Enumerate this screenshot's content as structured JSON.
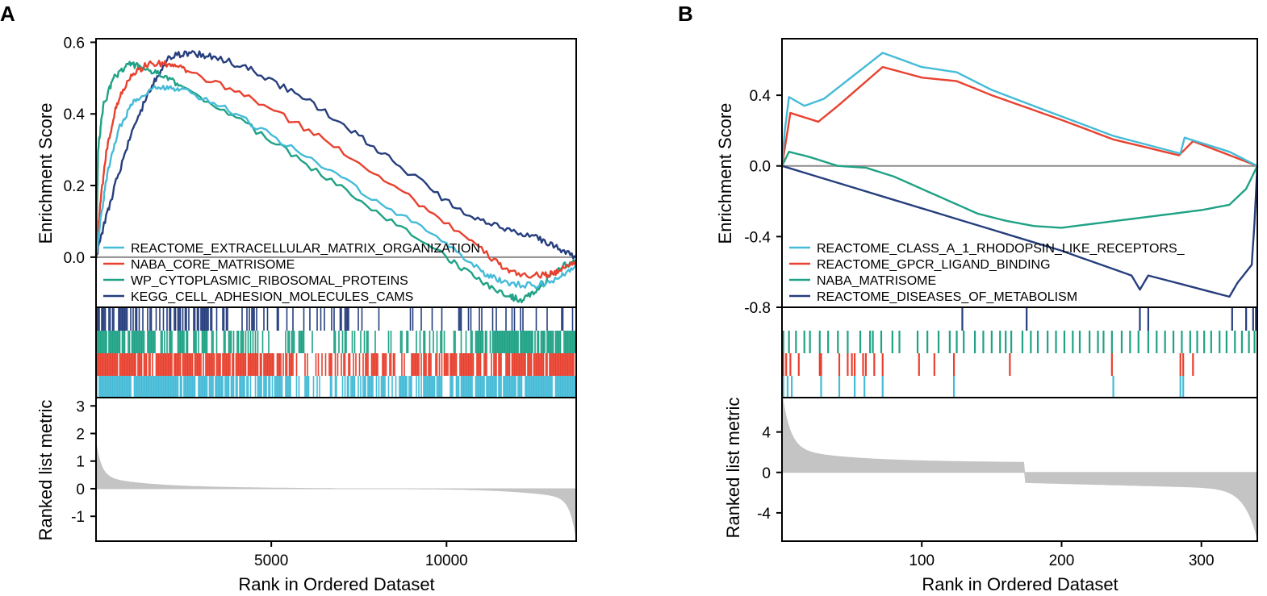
{
  "colors": {
    "light_blue": "#45BBD7",
    "red": "#E8412F",
    "green": "#1FA285",
    "navy": "#263E7D",
    "zero_line": "#8C8C8C",
    "metric_fill": "#C4C4C4",
    "frame": "#000000"
  },
  "chart_data": [
    {
      "panel_label": "A",
      "type": "line",
      "title": "",
      "xlabel": "Rank in Ordered Dataset",
      "ylabel_top": "Enrichment Score",
      "ylabel_bottom": "Ranked list metric",
      "xlim": [
        0,
        13700
      ],
      "xticks": [
        5000,
        10000
      ],
      "es_ylim": [
        -0.14,
        0.61
      ],
      "es_yticks": [
        "0.0",
        "0.2",
        "0.4",
        "0.6"
      ],
      "metric_ylim": [
        -1.9,
        3.3
      ],
      "metric_yticks": [
        "-1",
        "0",
        "1",
        "2",
        "3"
      ],
      "legend_position": "bottom-left",
      "metric_curve": {
        "start": 1.6,
        "knee": 0.4,
        "end": -1.8,
        "break_rank": null
      },
      "series": [
        {
          "name": "REACTOME_EXTRACELLULAR_MATRIX_ORGANIZATION",
          "color_key": "light_blue",
          "es_points": [
            [
              0,
              0.0
            ],
            [
              150,
              0.12
            ],
            [
              350,
              0.25
            ],
            [
              700,
              0.37
            ],
            [
              1100,
              0.44
            ],
            [
              1600,
              0.47
            ],
            [
              2100,
              0.475
            ],
            [
              2500,
              0.47
            ],
            [
              4000,
              0.4
            ],
            [
              6000,
              0.28
            ],
            [
              8000,
              0.16
            ],
            [
              10000,
              0.04
            ],
            [
              11000,
              -0.04
            ],
            [
              11600,
              -0.07
            ],
            [
              12500,
              -0.08
            ],
            [
              13200,
              -0.06
            ],
            [
              13700,
              -0.02
            ]
          ],
          "hits_profile": [
            [
              0,
              0.95
            ],
            [
              4000,
              0.82
            ],
            [
              5800,
              0.5
            ],
            [
              9000,
              0.55
            ],
            [
              11000,
              0.72
            ],
            [
              13700,
              0.95
            ]
          ]
        },
        {
          "name": "NABA_CORE_MATRISOME",
          "color_key": "red",
          "es_points": [
            [
              0,
              0.0
            ],
            [
              120,
              0.15
            ],
            [
              300,
              0.3
            ],
            [
              600,
              0.43
            ],
            [
              1000,
              0.51
            ],
            [
              1500,
              0.54
            ],
            [
              2100,
              0.54
            ],
            [
              2600,
              0.52
            ],
            [
              4500,
              0.44
            ],
            [
              6500,
              0.33
            ],
            [
              8500,
              0.2
            ],
            [
              10500,
              0.06
            ],
            [
              11500,
              -0.02
            ],
            [
              12000,
              -0.05
            ],
            [
              12800,
              -0.05
            ],
            [
              13200,
              -0.04
            ],
            [
              13700,
              -0.01
            ]
          ],
          "hits_profile": [
            [
              0,
              0.95
            ],
            [
              4000,
              0.85
            ],
            [
              5800,
              0.42
            ],
            [
              9000,
              0.5
            ],
            [
              11200,
              0.72
            ],
            [
              13700,
              0.95
            ]
          ]
        },
        {
          "name": "WP_CYTOPLASMIC_RIBOSOMAL_PROTEINS",
          "color_key": "green",
          "es_points": [
            [
              0,
              0.0
            ],
            [
              60,
              0.3
            ],
            [
              200,
              0.42
            ],
            [
              500,
              0.5
            ],
            [
              900,
              0.54
            ],
            [
              1300,
              0.53
            ],
            [
              1800,
              0.51
            ],
            [
              2400,
              0.48
            ],
            [
              4000,
              0.39
            ],
            [
              6000,
              0.26
            ],
            [
              8000,
              0.13
            ],
            [
              10000,
              0.0
            ],
            [
              11000,
              -0.07
            ],
            [
              11800,
              -0.11
            ],
            [
              12200,
              -0.12
            ],
            [
              12700,
              -0.08
            ],
            [
              13200,
              -0.03
            ],
            [
              13700,
              -0.01
            ]
          ],
          "hits_profile": [
            [
              0,
              0.85
            ],
            [
              4000,
              0.55
            ],
            [
              6000,
              0.25
            ],
            [
              10000,
              0.35
            ],
            [
              11800,
              0.82
            ],
            [
              13700,
              0.8
            ]
          ]
        },
        {
          "name": "KEGG_CELL_ADHESION_MOLECULES_CAMS",
          "color_key": "navy",
          "es_points": [
            [
              0,
              0.0
            ],
            [
              200,
              0.08
            ],
            [
              600,
              0.22
            ],
            [
              1100,
              0.37
            ],
            [
              1600,
              0.48
            ],
            [
              2100,
              0.56
            ],
            [
              2700,
              0.57
            ],
            [
              3400,
              0.56
            ],
            [
              4500,
              0.52
            ],
            [
              6000,
              0.44
            ],
            [
              7500,
              0.34
            ],
            [
              9000,
              0.23
            ],
            [
              10500,
              0.12
            ],
            [
              11600,
              0.08
            ],
            [
              12500,
              0.06
            ],
            [
              13100,
              0.03
            ],
            [
              13700,
              0.0
            ]
          ],
          "hits_profile": [
            [
              0,
              0.8
            ],
            [
              3000,
              0.55
            ],
            [
              4500,
              0.2
            ],
            [
              9000,
              0.22
            ],
            [
              11000,
              0.15
            ],
            [
              13700,
              0.18
            ]
          ]
        }
      ]
    },
    {
      "panel_label": "B",
      "type": "line",
      "title": "",
      "xlabel": "Rank in Ordered Dataset",
      "ylabel_top": "Enrichment Score",
      "ylabel_bottom": "Ranked list metric",
      "xlim": [
        0,
        340
      ],
      "xticks": [
        100,
        200,
        300
      ],
      "es_ylim": [
        -0.8,
        0.72
      ],
      "es_yticks": [
        "-0.8",
        "-0.4",
        "0.0",
        "0.4"
      ],
      "metric_ylim": [
        -6.8,
        7.4
      ],
      "metric_yticks": [
        "-4",
        "0",
        "4"
      ],
      "legend_position": "bottom-left",
      "metric_curve": {
        "start": 6.5,
        "knee": 1.1,
        "end": -6.5,
        "break_rank": 173
      },
      "series": [
        {
          "name": "REACTOME_CLASS_A_1_RHODOPSIN_LIKE_RECEPTORS_",
          "color_key": "light_blue",
          "es_points": [
            [
              0,
              0.0
            ],
            [
              2,
              0.2
            ],
            [
              5,
              0.39
            ],
            [
              16,
              0.34
            ],
            [
              30,
              0.38
            ],
            [
              72,
              0.64
            ],
            [
              100,
              0.56
            ],
            [
              125,
              0.53
            ],
            [
              150,
              0.43
            ],
            [
              200,
              0.28
            ],
            [
              237,
              0.17
            ],
            [
              285,
              0.07
            ],
            [
              288,
              0.16
            ],
            [
              320,
              0.08
            ],
            [
              340,
              0.0
            ]
          ],
          "rug": [
            1,
            4,
            7,
            28,
            41,
            52,
            59,
            72,
            123,
            237,
            285,
            287
          ]
        },
        {
          "name": "REACTOME_GPCR_LIGAND_BINDING",
          "color_key": "red",
          "es_points": [
            [
              0,
              0.0
            ],
            [
              3,
              0.15
            ],
            [
              6,
              0.3
            ],
            [
              26,
              0.25
            ],
            [
              40,
              0.34
            ],
            [
              72,
              0.56
            ],
            [
              100,
              0.5
            ],
            [
              125,
              0.48
            ],
            [
              150,
              0.4
            ],
            [
              200,
              0.26
            ],
            [
              237,
              0.15
            ],
            [
              284,
              0.06
            ],
            [
              294,
              0.14
            ],
            [
              340,
              0.0
            ]
          ],
          "rug": [
            1,
            3,
            6,
            12,
            27,
            28,
            41,
            47,
            50,
            52,
            58,
            60,
            66,
            72,
            98,
            109,
            123,
            163,
            236,
            285,
            287,
            294
          ]
        },
        {
          "name": "NABA_MATRISOME",
          "color_key": "green",
          "es_points": [
            [
              0,
              0.0
            ],
            [
              5,
              0.08
            ],
            [
              20,
              0.05
            ],
            [
              40,
              0.0
            ],
            [
              60,
              -0.01
            ],
            [
              80,
              -0.06
            ],
            [
              100,
              -0.13
            ],
            [
              120,
              -0.2
            ],
            [
              140,
              -0.27
            ],
            [
              160,
              -0.31
            ],
            [
              180,
              -0.34
            ],
            [
              200,
              -0.35
            ],
            [
              220,
              -0.33
            ],
            [
              250,
              -0.3
            ],
            [
              280,
              -0.27
            ],
            [
              300,
              -0.25
            ],
            [
              320,
              -0.22
            ],
            [
              332,
              -0.13
            ],
            [
              340,
              0.0
            ]
          ],
          "rug": [
            1,
            5,
            10,
            16,
            20,
            27,
            33,
            40,
            47,
            56,
            63,
            65,
            71,
            79,
            84,
            97,
            104,
            112,
            120,
            125,
            130,
            138,
            144,
            150,
            156,
            160,
            164,
            172,
            178,
            183,
            190,
            196,
            202,
            208,
            213,
            220,
            226,
            230,
            236,
            243,
            249,
            255,
            262,
            268,
            274,
            280,
            286,
            292,
            297,
            302,
            307,
            313,
            318,
            324,
            329,
            334,
            338
          ]
        },
        {
          "name": "REACTOME_DISEASES_OF_METABOLISM",
          "color_key": "navy",
          "es_points": [
            [
              0,
              0.0
            ],
            [
              100,
              -0.24
            ],
            [
              200,
              -0.48
            ],
            [
              250,
              -0.62
            ],
            [
              256,
              -0.7
            ],
            [
              262,
              -0.62
            ],
            [
              320,
              -0.74
            ],
            [
              326,
              -0.66
            ],
            [
              336,
              -0.56
            ],
            [
              338,
              -0.32
            ],
            [
              340,
              0.0
            ]
          ],
          "rug": [
            129,
            175,
            256,
            262,
            322,
            332,
            337,
            339
          ]
        }
      ]
    }
  ]
}
